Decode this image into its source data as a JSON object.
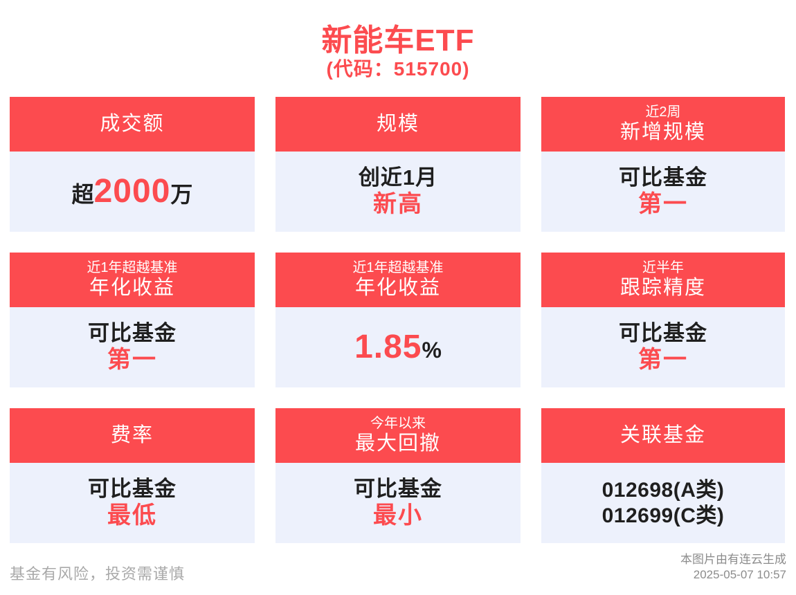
{
  "page": {
    "title": "新能车ETF",
    "subtitle": "(代码：515700)"
  },
  "colors": {
    "accent_red": "#fc4b4f",
    "card_body_bg": "#edf1fc",
    "text_black": "#1f1f1f",
    "footer_gray": "#a9a9a9"
  },
  "cards": [
    {
      "header_main": "成交额",
      "body_prefix": "超",
      "body_value": "2000",
      "body_suffix": "万"
    },
    {
      "header_main": "规模",
      "body_line1": "创近1月",
      "body_line2": "新高"
    },
    {
      "header_top": "近2周",
      "header_main": "新增规模",
      "body_line1": "可比基金",
      "body_line2": "第一"
    },
    {
      "header_top": "近1年超越基准",
      "header_main": "年化收益",
      "body_line1": "可比基金",
      "body_line2": "第一"
    },
    {
      "header_top": "近1年超越基准",
      "header_main": "年化收益",
      "body_value": "1.85",
      "body_suffix": "%"
    },
    {
      "header_top": "近半年",
      "header_main": "跟踪精度",
      "body_line1": "可比基金",
      "body_line2": "第一"
    },
    {
      "header_main": "费率",
      "body_line1": "可比基金",
      "body_line2": "最低"
    },
    {
      "header_top": "今年以来",
      "header_main": "最大回撤",
      "body_line1": "可比基金",
      "body_line2": "最小"
    },
    {
      "header_main": "关联基金",
      "body_code1": "012698(A类)",
      "body_code2": "012699(C类)"
    }
  ],
  "footer": {
    "left": "基金有风险，投资需谨慎",
    "right_line1": "本图片由有连云生成",
    "right_line2": "2025-05-07 10:57"
  }
}
